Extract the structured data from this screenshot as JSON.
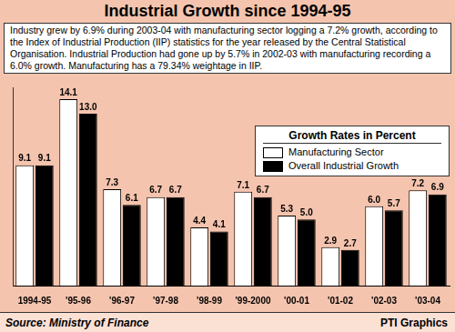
{
  "chart_data": {
    "type": "bar",
    "title": "Industrial Growth since 1994-95",
    "subtitle": "Industry grew by 6.9% during 2003-04 with manufacturing sector logging a 7.2% growth, according to the Index of Industrial Production (IIP) statistics for the year released by the Central Statistical Organisation. Industrial Production had gone up by 5.7% in 2002-03 with manufacturing recording a 6.0% growth. Manufacturing has a 79.34% weightage in IIP.",
    "legend_title": "Growth Rates in Percent",
    "source": "Source: Ministry of Finance",
    "credit": "PTI Graphics",
    "categories": [
      "1994-95",
      "'95-96",
      "'96-97",
      "'97-98",
      "'98-99",
      "'99-2000",
      "'00-01",
      "'01-02",
      "'02-03",
      "'03-04"
    ],
    "series": [
      {
        "name": "Manufacturing Sector",
        "color": "#ffffff",
        "values": [
          9.1,
          14.1,
          7.3,
          6.7,
          4.4,
          7.1,
          5.3,
          2.9,
          6.0,
          7.2
        ],
        "value_labels": [
          "9.1",
          "14.1",
          "7.3",
          "6.7",
          "4.4",
          "7.1",
          "5.3",
          "2.9",
          "6.0",
          "7.2"
        ]
      },
      {
        "name": "Overall Industrial Growth",
        "color": "#000000",
        "values": [
          9.1,
          13.0,
          6.1,
          6.7,
          4.1,
          6.7,
          5.0,
          2.7,
          5.7,
          6.9
        ],
        "value_labels": [
          "9.1",
          "13.0",
          "6.1",
          "6.7",
          "4.1",
          "6.7",
          "5.0",
          "2.7",
          "5.7",
          "6.9"
        ]
      }
    ],
    "ylim": [
      0,
      15
    ],
    "grid": false,
    "legend": "right",
    "data_labels": true,
    "tick_labels": "x"
  }
}
